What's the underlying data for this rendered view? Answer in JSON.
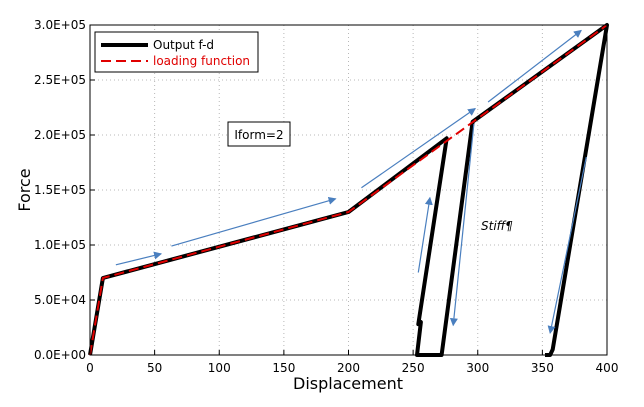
{
  "chart_data": {
    "type": "line",
    "xlabel": "Displacement",
    "ylabel": "Force",
    "xlim": [
      0,
      400
    ],
    "ylim": [
      0,
      300000
    ],
    "x_ticks": [
      0,
      50,
      100,
      150,
      200,
      250,
      300,
      350,
      400
    ],
    "x_tick_labels": [
      "0",
      "50",
      "100",
      "150",
      "200",
      "250",
      "300",
      "350",
      "400"
    ],
    "y_ticks": [
      0,
      50000,
      100000,
      150000,
      200000,
      250000,
      300000
    ],
    "y_tick_labels": [
      "0.0E+00",
      "5.0E+04",
      "1.0E+05",
      "1.5E+05",
      "2.0E+05",
      "2.5E+05",
      "3.0E+05"
    ],
    "grid": "dotted",
    "legend_position": "top-left",
    "series": [
      {
        "name": "Output f-d",
        "color": "#000000",
        "style": "solid",
        "points": [
          [
            0,
            0
          ],
          [
            10,
            70000
          ],
          [
            200,
            130000
          ],
          [
            276,
            197000
          ],
          [
            276,
            197000
          ],
          [
            254,
            28000
          ],
          [
            256,
            30000
          ],
          [
            253,
            0
          ],
          [
            272,
            0
          ],
          [
            296,
            212000
          ],
          [
            400,
            300000
          ],
          [
            358,
            5000
          ],
          [
            356,
            0
          ],
          [
            352,
            0
          ]
        ]
      },
      {
        "name": "loading function",
        "color": "#e00000",
        "style": "dashed",
        "points": [
          [
            0,
            0
          ],
          [
            10,
            70000
          ],
          [
            200,
            130000
          ],
          [
            400,
            300000
          ]
        ]
      }
    ],
    "annotations": [
      {
        "text": "Iform=2",
        "x": 137,
        "y": 200000,
        "boxed": true
      },
      {
        "text": "Stiff¶",
        "x": 303,
        "y": 117000,
        "italic": true
      }
    ],
    "arrows": [
      {
        "from": [
          20,
          82000
        ],
        "to": [
          55,
          92000
        ]
      },
      {
        "from": [
          63,
          99000
        ],
        "to": [
          190,
          142000
        ]
      },
      {
        "from": [
          210,
          152000
        ],
        "to": [
          298,
          224000
        ]
      },
      {
        "from": [
          308,
          230000
        ],
        "to": [
          380,
          295000
        ]
      },
      {
        "from": [
          254,
          75000
        ],
        "to": [
          263,
          143000
        ]
      },
      {
        "from": [
          297,
          210000
        ],
        "to": [
          281,
          27000
        ]
      },
      {
        "from": [
          384,
          180000
        ],
        "to": [
          356,
          20000
        ]
      }
    ],
    "colors": {
      "output": "#000000",
      "loading": "#e00000",
      "arrow": "#4a7fbf"
    }
  }
}
